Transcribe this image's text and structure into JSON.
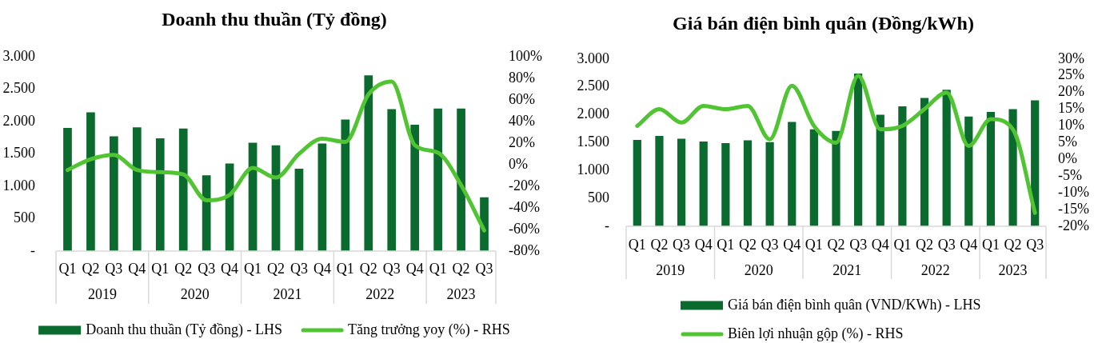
{
  "chart_data": [
    {
      "type": "bar",
      "title": "Doanh thu thuần (Tỷ đồng)",
      "categories": [
        "Q1",
        "Q2",
        "Q3",
        "Q4",
        "Q1",
        "Q2",
        "Q3",
        "Q4",
        "Q1",
        "Q2",
        "Q3",
        "Q4",
        "Q1",
        "Q2",
        "Q3",
        "Q4",
        "Q1",
        "Q2",
        "Q3"
      ],
      "series": [
        {
          "name": "Doanh thu thuần (Tỷ đồng) - LHS",
          "color": "#0b6b2e",
          "values": [
            1900,
            2140,
            1770,
            1910,
            1740,
            1890,
            1170,
            1350,
            1670,
            1630,
            1270,
            1660,
            2030,
            2710,
            2190,
            1950,
            2200,
            2200,
            830
          ]
        },
        {
          "name": "Tăng trưởng yoy (%) - RHS",
          "type": "line",
          "axis": "y2",
          "color": "#50c432",
          "values": [
            -5,
            5,
            9,
            -5,
            -7,
            -9,
            -33,
            -28,
            -3,
            -12,
            10,
            24,
            21,
            65,
            77,
            18,
            11,
            -19,
            -61
          ]
        }
      ],
      "ylim": [
        0,
        3000
      ],
      "yticks": [
        {
          "value": 0,
          "label": "-"
        },
        500,
        {
          "value": 1000,
          "label": "1.000"
        },
        {
          "value": 1500,
          "label": "1.500"
        },
        {
          "value": 2000,
          "label": "2.000"
        },
        {
          "value": 2500,
          "label": "2.500"
        },
        {
          "value": 3000,
          "label": "3.000"
        }
      ],
      "y2lim": [
        -80,
        100
      ],
      "y2ticks": [
        {
          "value": -80,
          "label": "-80%"
        },
        {
          "value": -60,
          "label": "-60%"
        },
        {
          "value": -40,
          "label": "-40%"
        },
        {
          "value": -20,
          "label": "-20%"
        },
        {
          "value": 0,
          "label": "0%"
        },
        {
          "value": 20,
          "label": "20%"
        },
        {
          "value": 40,
          "label": "40%"
        },
        {
          "value": 60,
          "label": "60%"
        },
        {
          "value": 80,
          "label": "80%"
        },
        {
          "value": 100,
          "label": "100%"
        }
      ],
      "legend": "bottom",
      "marker": "none",
      "annotations": [
        "2019",
        "2020",
        "2021",
        "2022",
        "2023"
      ]
    },
    {
      "type": "bar",
      "title": "Giá bán điện bình quân (Đồng/kWh)",
      "categories": [
        "Q1",
        "Q2",
        "Q3",
        "Q4",
        "Q1",
        "Q2",
        "Q3",
        "Q4",
        "Q1",
        "Q2",
        "Q3",
        "Q4",
        "Q1",
        "Q2",
        "Q3",
        "Q4",
        "Q1",
        "Q2",
        "Q3"
      ],
      "series": [
        {
          "name": "Giá bán điện bình quân (VND/KWh) - LHS",
          "color": "#0b6b2e",
          "values": [
            1550,
            1620,
            1570,
            1520,
            1490,
            1540,
            1510,
            1870,
            1740,
            1710,
            2740,
            2000,
            2150,
            2300,
            2450,
            1970,
            2050,
            2100,
            2260
          ]
        },
        {
          "name": "Biên lợi nhuận gộp (%) - RHS",
          "type": "line",
          "axis": "y2",
          "color": "#50c432",
          "values": [
            10,
            15,
            11,
            16,
            15,
            16,
            6,
            22,
            10,
            5,
            25,
            9,
            10,
            15,
            20,
            4,
            12,
            9,
            -16
          ]
        }
      ],
      "ylim": [
        0,
        3000
      ],
      "yticks": [
        {
          "value": 0,
          "label": "-"
        },
        500,
        {
          "value": 1000,
          "label": "1.000"
        },
        {
          "value": 1500,
          "label": "1.500"
        },
        {
          "value": 2000,
          "label": "2.000"
        },
        {
          "value": 2500,
          "label": "2.500"
        },
        {
          "value": 3000,
          "label": "3.000"
        }
      ],
      "y2lim": [
        -20,
        30
      ],
      "y2ticks": [
        {
          "value": -20,
          "label": "-20%"
        },
        {
          "value": -15,
          "label": "-15%"
        },
        {
          "value": -10,
          "label": "-10%"
        },
        {
          "value": -5,
          "label": "-5%"
        },
        {
          "value": 0,
          "label": "0%"
        },
        {
          "value": 5,
          "label": "5%"
        },
        {
          "value": 10,
          "label": "10%"
        },
        {
          "value": 15,
          "label": "15%"
        },
        {
          "value": 20,
          "label": "20%"
        },
        {
          "value": 25,
          "label": "25%"
        },
        {
          "value": 30,
          "label": "30%"
        }
      ],
      "legend": "bottom",
      "marker": "none",
      "annotations": [
        "2019",
        "2020",
        "2021",
        "2022",
        "2023"
      ]
    }
  ]
}
